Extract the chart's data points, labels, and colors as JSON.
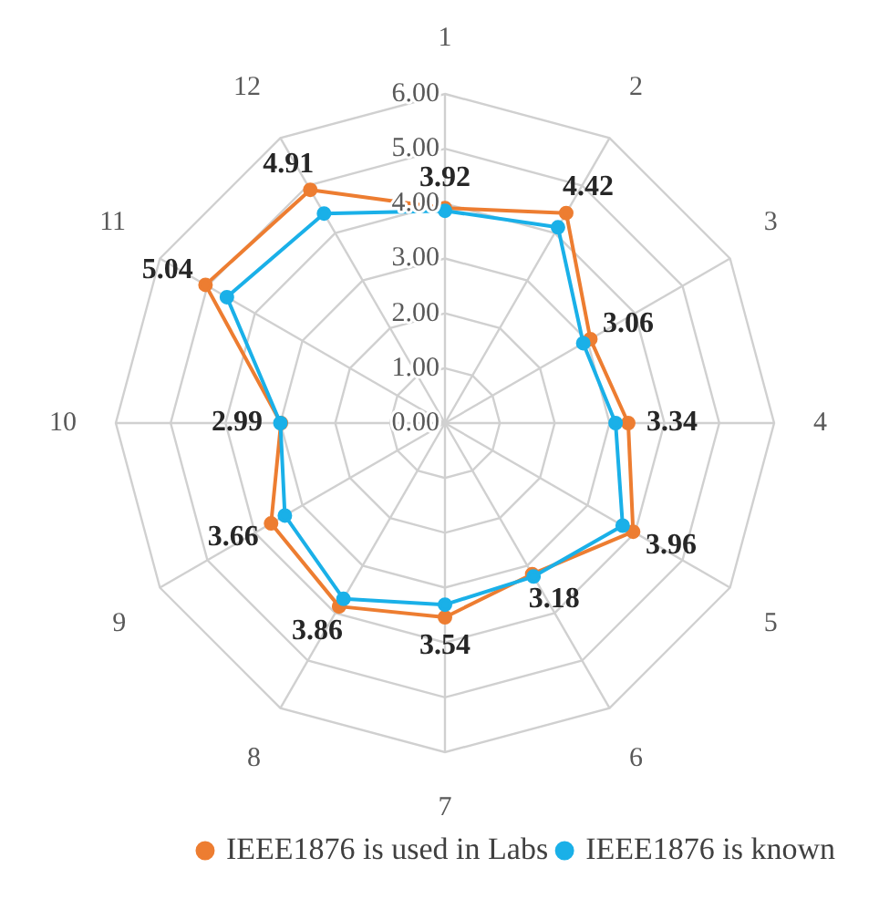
{
  "chart_data": {
    "type": "radar",
    "categories": [
      "1",
      "2",
      "3",
      "4",
      "5",
      "6",
      "7",
      "8",
      "9",
      "10",
      "11",
      "12"
    ],
    "ylim": [
      0,
      6
    ],
    "yticks": [
      {
        "value": 0,
        "label": "0.00"
      },
      {
        "value": 1,
        "label": "1.00"
      },
      {
        "value": 2,
        "label": "2.00"
      },
      {
        "value": 3,
        "label": "3.00"
      },
      {
        "value": 4,
        "label": "4.00"
      },
      {
        "value": 5,
        "label": "5.00"
      },
      {
        "value": 6,
        "label": "6.00"
      }
    ],
    "grid": true,
    "legend": "bottom right",
    "marker": "circle",
    "line_style": "solid",
    "series": [
      {
        "name": "IEEE1876 is used in Labs",
        "color": "#ed7d31",
        "values": [
          3.92,
          4.42,
          3.06,
          3.34,
          3.96,
          3.18,
          3.54,
          3.86,
          3.66,
          2.99,
          5.04,
          4.91
        ],
        "value_labels": [
          "3.92",
          "4.42",
          "3.06",
          "3.34",
          "3.96",
          "3.18",
          "3.54",
          "3.86",
          "3.66",
          "2.99",
          "5.04",
          "4.91"
        ]
      },
      {
        "name": "IEEE1876 is known",
        "color": "#1ab0e8",
        "values": [
          3.87,
          4.12,
          2.91,
          3.11,
          3.74,
          3.23,
          3.31,
          3.7,
          3.37,
          3.0,
          4.59,
          4.41
        ]
      }
    ]
  }
}
